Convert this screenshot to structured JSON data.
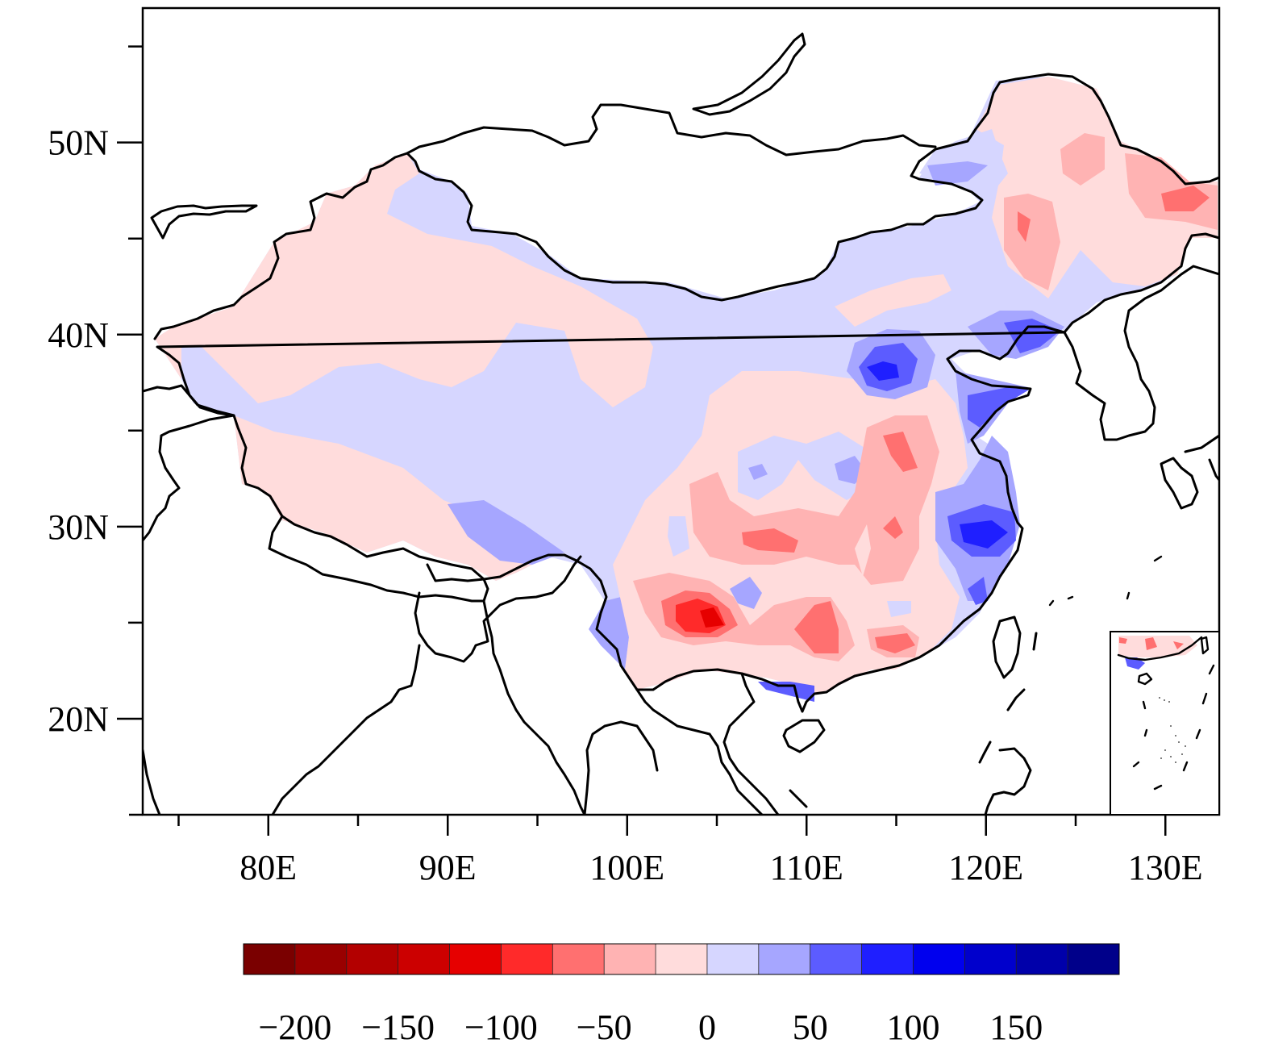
{
  "map": {
    "x_axis": {
      "range": [
        73,
        133
      ],
      "ticks": [
        {
          "value": 80,
          "label": "80E"
        },
        {
          "value": 90,
          "label": "90E"
        },
        {
          "value": 100,
          "label": "100E"
        },
        {
          "value": 110,
          "label": "110E"
        },
        {
          "value": 120,
          "label": "120E"
        },
        {
          "value": 130,
          "label": "130E"
        }
      ],
      "minor_ticks": [
        75,
        85,
        95,
        105,
        115,
        125
      ]
    },
    "y_axis": {
      "range": [
        15,
        57
      ],
      "ticks": [
        {
          "value": 20,
          "label": "20N"
        },
        {
          "value": 30,
          "label": "30N"
        },
        {
          "value": 40,
          "label": "40N"
        },
        {
          "value": 50,
          "label": "50N"
        }
      ],
      "minor_ticks": [
        25,
        35,
        45,
        55
      ]
    },
    "inset": "South China Sea islands"
  },
  "colorbar": {
    "colors": [
      "#7a0000",
      "#990000",
      "#b30000",
      "#cc0000",
      "#e60000",
      "#ff2a2a",
      "#ff7070",
      "#ffb3b3",
      "#ffdcdc",
      "#d6d6ff",
      "#a6a6ff",
      "#5c5cff",
      "#1f1fff",
      "#0000ee",
      "#0000cc",
      "#0000aa",
      "#00008a"
    ],
    "labels": [
      {
        "value": -200,
        "text": "−200"
      },
      {
        "value": -150,
        "text": "−150"
      },
      {
        "value": -100,
        "text": "−100"
      },
      {
        "value": -50,
        "text": "−50"
      },
      {
        "value": 0,
        "text": "0"
      },
      {
        "value": 50,
        "text": "50"
      },
      {
        "value": 100,
        "text": "100"
      },
      {
        "value": 150,
        "text": "150"
      }
    ],
    "range": [
      -225,
      200
    ]
  }
}
